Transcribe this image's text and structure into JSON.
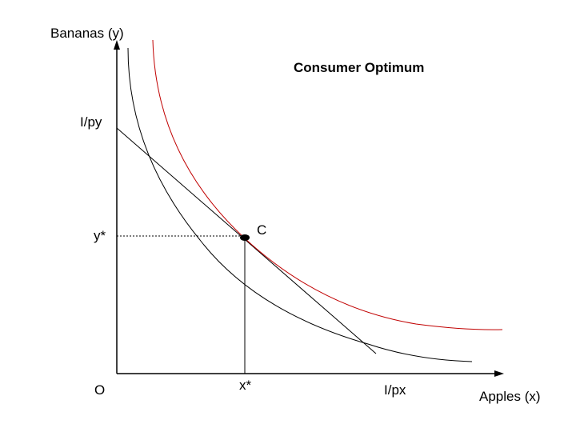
{
  "diagram": {
    "title": "Consumer Optimum",
    "y_axis_label": "Bananas (y)",
    "x_axis_label": "Apples (x)",
    "origin_label": "O",
    "y_intercept_label": "I/py",
    "x_intercept_label": "I/px",
    "optimum_y_label": "y*",
    "optimum_x_label": "x*",
    "optimum_point_label": "C"
  },
  "colors": {
    "axes": "#000000",
    "budget_line": "#000000",
    "tangent_indifference_curve": "#000000",
    "higher_indifference_curve": "#c00000"
  }
}
